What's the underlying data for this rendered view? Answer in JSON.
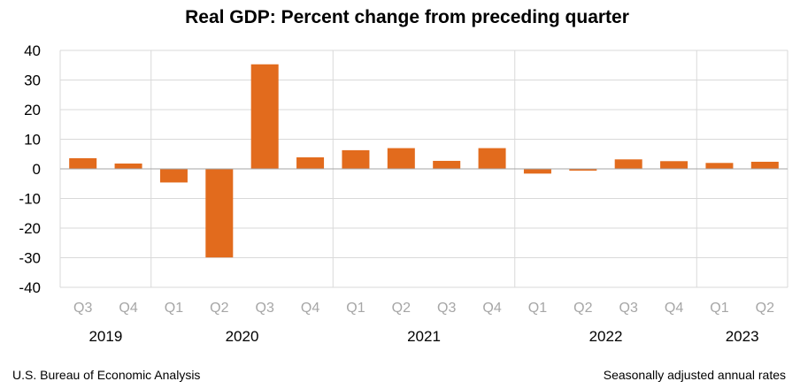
{
  "chart_data": {
    "type": "bar",
    "title": "Real GDP:  Percent change from preceding quarter",
    "categories": [
      "Q3",
      "Q4",
      "Q1",
      "Q2",
      "Q3",
      "Q4",
      "Q1",
      "Q2",
      "Q3",
      "Q4",
      "Q1",
      "Q2",
      "Q3",
      "Q4",
      "Q1",
      "Q2"
    ],
    "years": [
      {
        "label": "2019",
        "start": 0,
        "end": 1
      },
      {
        "label": "2020",
        "start": 2,
        "end": 5
      },
      {
        "label": "2021",
        "start": 6,
        "end": 9
      },
      {
        "label": "2022",
        "start": 10,
        "end": 13
      },
      {
        "label": "2023",
        "start": 14,
        "end": 15
      }
    ],
    "series": [
      {
        "values": [
          3.6,
          1.8,
          -4.6,
          -29.9,
          35.3,
          3.9,
          6.3,
          7.0,
          2.7,
          7.0,
          -1.6,
          -0.6,
          3.2,
          2.6,
          2.0,
          2.4
        ]
      }
    ],
    "bar_color": "#e26b1d",
    "ylim": [
      -40,
      40
    ],
    "yticks": [
      -40,
      -30,
      -20,
      -10,
      0,
      10,
      20,
      30,
      40
    ],
    "ytick_labels": [
      "-40",
      "-30",
      "-20",
      "-10",
      "0",
      "10",
      "20",
      "30",
      "40"
    ],
    "grid": true,
    "xlabel": "",
    "ylabel": ""
  },
  "footer": {
    "source": "U.S. Bureau of Economic Analysis",
    "note": "Seasonally adjusted annual rates"
  }
}
